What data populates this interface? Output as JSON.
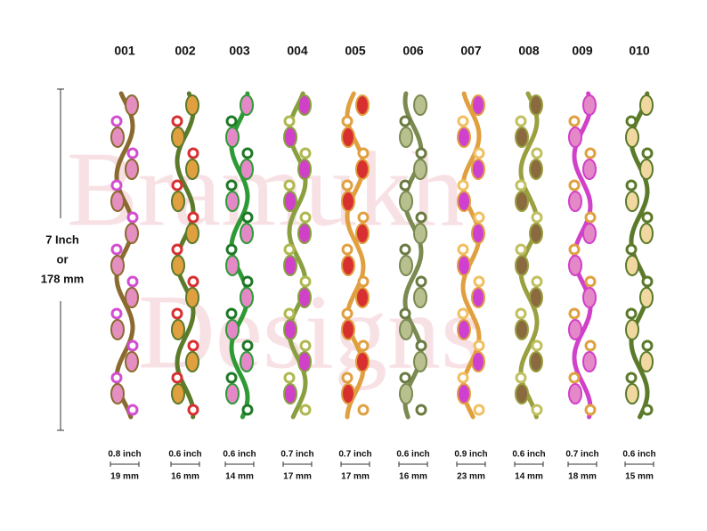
{
  "watermark": [
    "Bramukh",
    "Designs"
  ],
  "height": {
    "inch": "7 Inch",
    "or": "or",
    "mm": "178 mm"
  },
  "designs": [
    {
      "code": "001",
      "width_inch": "0.8 inch",
      "width_mm": "19 mm"
    },
    {
      "code": "002",
      "width_inch": "0.6 inch",
      "width_mm": "16 mm"
    },
    {
      "code": "003",
      "width_inch": "0.6 inch",
      "width_mm": "14 mm"
    },
    {
      "code": "004",
      "width_inch": "0.7 inch",
      "width_mm": "17 mm"
    },
    {
      "code": "005",
      "width_inch": "0.7 inch",
      "width_mm": "17 mm"
    },
    {
      "code": "006",
      "width_inch": "0.6 inch",
      "width_mm": "16 mm"
    },
    {
      "code": "007",
      "width_inch": "0.9 inch",
      "width_mm": "23 mm"
    },
    {
      "code": "008",
      "width_inch": "0.6 inch",
      "width_mm": "14 mm"
    },
    {
      "code": "009",
      "width_inch": "0.7 inch",
      "width_mm": "18 mm"
    },
    {
      "code": "010",
      "width_inch": "0.6 inch",
      "width_mm": "15 mm"
    }
  ]
}
